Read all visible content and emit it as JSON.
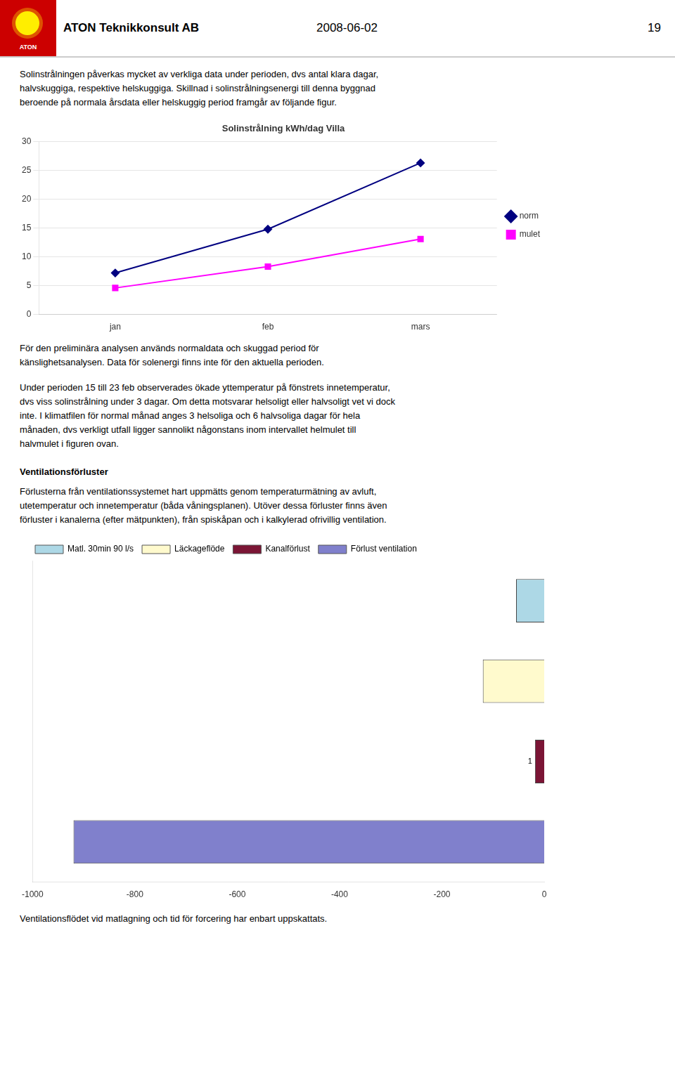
{
  "logo_text": "ATON",
  "header": {
    "company": "ATON Teknikkonsult AB",
    "date": "2008-06-02",
    "page": "19"
  },
  "intro_lines": [
    "Solinstrålningen påverkas mycket av verkliga data under perioden, dvs antal klara dagar,",
    "halvskuggiga, respektive helskuggiga. Skillnad i solinstrålningsenergi till denna byggnad",
    "beroende på normala årsdata eller helskuggig period framgår av följande figur."
  ],
  "caption_lines": [
    "För den preliminära analysen används normaldata och skuggad period för",
    "känslighetsanalysen. Data för solenergi finns inte för den aktuella perioden."
  ],
  "para1_lines": [
    "Under perioden 15 till 23 feb observerades ökade yttemperatur på fönstrets innetemperatur,",
    "dvs viss solinstrålning under 3 dagar. Om detta motsvarar helsoligt eller halvsoligt vet vi dock",
    "inte. I klimatfilen för normal månad anges 3 helsoliga och 6 halvsoliga dagar för hela",
    "månaden, dvs verkligt utfall ligger sannolikt någonstans inom intervallet helmulet till",
    "halvmulet i figuren ovan."
  ],
  "ventilation_heading": "Ventilationsförluster",
  "ventilation_lines": [
    "Förlusterna från ventilationssystemet hart uppmätts genom temperaturmätning av avluft,",
    "utetemperatur och innetemperatur (båda våningsplanen).  Utöver dessa förluster finns även",
    "förluster i kanalerna (efter mätpunkten), från spiskåpan och i kalkylerad ofrivillig ventilation."
  ],
  "footer_text": "Ventilationsflödet vid matlagning och tid för forcering har enbart uppskattats.",
  "chart_data": [
    {
      "type": "line",
      "title": "Solinstrålning kWh/dag Villa",
      "categories": [
        "jan",
        "feb",
        "mars"
      ],
      "series": [
        {
          "name": "norm",
          "color": "#000080",
          "marker": "diamond",
          "values": [
            7.2,
            14.8,
            26.3
          ]
        },
        {
          "name": "mulet",
          "color": "#ff00ff",
          "marker": "square",
          "values": [
            4.6,
            8.3,
            13.1
          ]
        }
      ],
      "ylim": [
        0,
        30
      ],
      "yticks": [
        0,
        5,
        10,
        15,
        20,
        25,
        30
      ],
      "grid": "y",
      "legend": "right"
    },
    {
      "type": "bar",
      "orientation": "horizontal",
      "categories": [
        "Matl. 30min 90 l/s",
        "Läckageflöde",
        "Kanalförlust",
        "Förlust ventilation"
      ],
      "values": [
        -55,
        -120,
        -18,
        -920
      ],
      "colors": [
        "#add8e6",
        "#fffacd",
        "#7b1535",
        "#8080cc"
      ],
      "xlim": [
        -1000,
        0
      ],
      "xticks": [
        -1000,
        -800,
        -600,
        -400,
        -200,
        0
      ],
      "grid": false,
      "legend": "upper left",
      "tick_labels": "x",
      "annotations": [
        {
          "text": "1",
          "category": "Kanalförlust",
          "x": -18
        }
      ]
    }
  ]
}
